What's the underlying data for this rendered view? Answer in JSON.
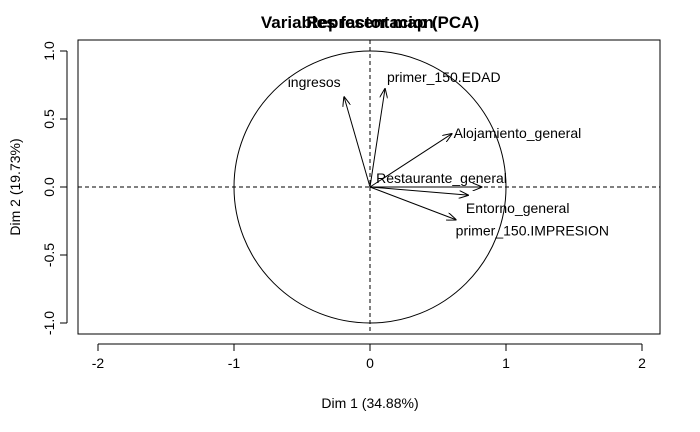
{
  "chart_data": {
    "type": "scatter",
    "subtype": "pca-variables-factor-map",
    "title_overlap": [
      "Variables factor map (PCA)",
      "Representacion"
    ],
    "xlabel": "Dim 1 (34.88%)",
    "ylabel": "Dim 2 (19.73%)",
    "xlim": [
      -2.0,
      2.0
    ],
    "ylim": [
      -1.0,
      1.0
    ],
    "xticks": [
      -2,
      -1,
      0,
      1,
      2
    ],
    "yticks": [
      -1.0,
      -0.5,
      0.0,
      0.5,
      1.0
    ],
    "xtick_labels": [
      "-2",
      "-1",
      "0",
      "1",
      "2"
    ],
    "ytick_labels": [
      "-1.0",
      "-0.5",
      "0.0",
      "0.5",
      "1.0"
    ],
    "unit_circle": true,
    "reference_lines": [
      0,
      0
    ],
    "grid": false,
    "vectors": [
      {
        "name": "ingresos",
        "x": -0.19,
        "y": 0.66
      },
      {
        "name": "primer_150.EDAD",
        "x": 0.11,
        "y": 0.72
      },
      {
        "name": "Alojamiento_general",
        "x": 0.6,
        "y": 0.39
      },
      {
        "name": "Restaurante_general",
        "x": 0.82,
        "y": 0.0
      },
      {
        "name": "Entorno_general",
        "x": 0.72,
        "y": -0.06
      },
      {
        "name": "primer_150.IMPRESION",
        "x": 0.63,
        "y": -0.24
      }
    ]
  }
}
